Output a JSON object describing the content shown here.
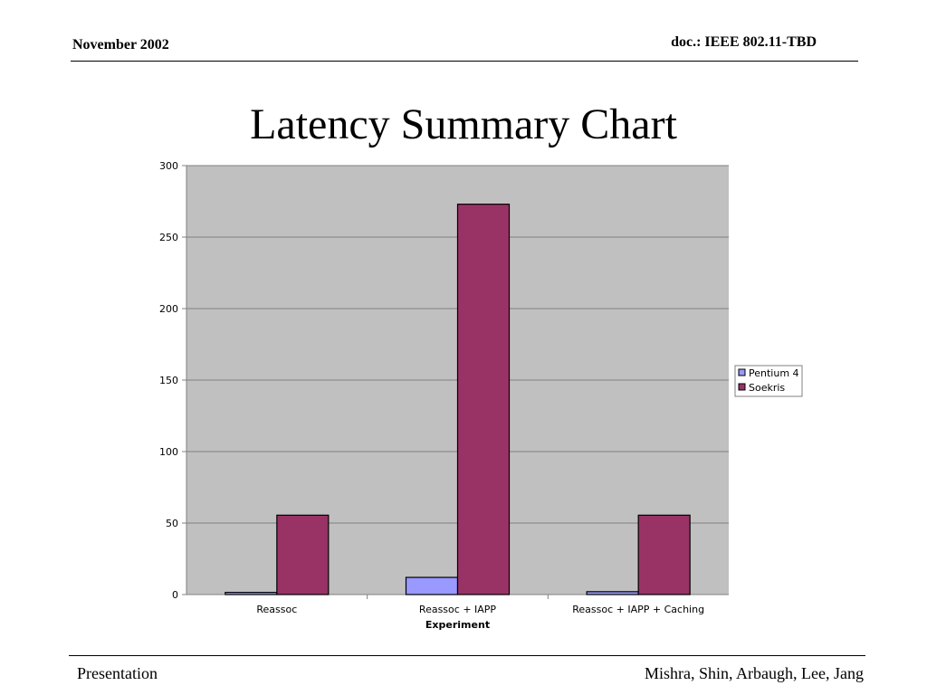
{
  "header": {
    "date": "November 2002",
    "doc": "doc.: IEEE 802.11-TBD"
  },
  "slide": {
    "title": "Latency Summary Chart"
  },
  "footer": {
    "left": "Presentation",
    "right": "Mishra, Shin, Arbaugh, Lee, Jang"
  },
  "chart_data": {
    "type": "bar",
    "title": "",
    "xlabel": "Experiment",
    "ylabel": "",
    "categories": [
      "Reassoc",
      "Reassoc + IAPP",
      "Reassoc + IAPP + Caching"
    ],
    "series": [
      {
        "name": "Pentium 4",
        "color": "#9999ff",
        "values": [
          1.5,
          12,
          2
        ]
      },
      {
        "name": "Soekris",
        "color": "#993366",
        "values": [
          55.5,
          273,
          55.5
        ]
      }
    ],
    "ylim": [
      0,
      300
    ],
    "yticks": [
      0,
      50,
      100,
      150,
      200,
      250,
      300
    ],
    "grid": true,
    "plot_background": "#c0c0c0",
    "legend": "right"
  }
}
